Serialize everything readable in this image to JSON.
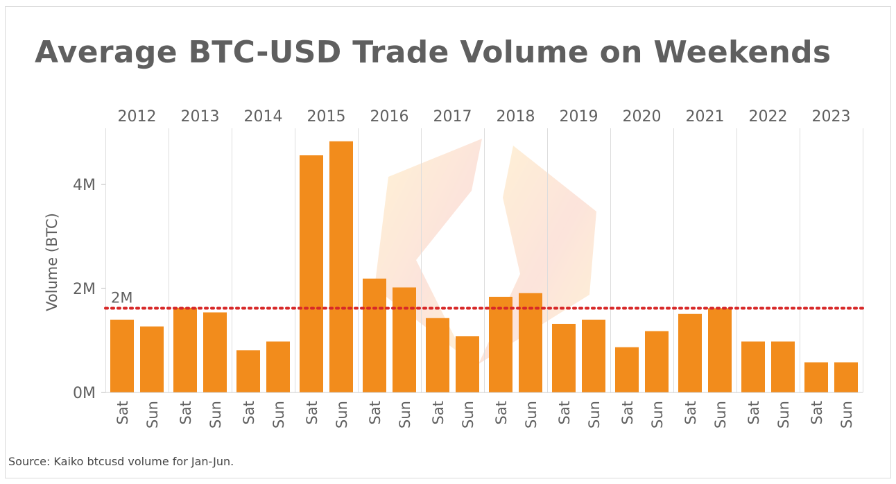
{
  "title": "Average BTC-USD Trade Volume on Weekends",
  "source": "Source: Kaiko btcusd volume for Jan-Jun.",
  "colors": {
    "bar": "#f28c1c",
    "reference_line": "#d72828",
    "grid": "#dddddd",
    "text": "#5f5f5f"
  },
  "chart_data": {
    "type": "bar",
    "title": "Average BTC-USD Trade Volume on Weekends",
    "ylabel": "Volume (BTC)",
    "xlabel": "",
    "ylim": [
      0,
      5000000
    ],
    "yticks": [
      {
        "value": 0,
        "label": "0M"
      },
      {
        "value": 2000000,
        "label": "2M"
      },
      {
        "value": 4000000,
        "label": "4M"
      }
    ],
    "groups": [
      "2012",
      "2013",
      "2014",
      "2015",
      "2016",
      "2017",
      "2018",
      "2019",
      "2020",
      "2021",
      "2022",
      "2023"
    ],
    "subcategories": [
      "Sat",
      "Sun"
    ],
    "values": [
      [
        1400000,
        1270000
      ],
      [
        1630000,
        1540000
      ],
      [
        810000,
        980000
      ],
      [
        4560000,
        4830000
      ],
      [
        2190000,
        2020000
      ],
      [
        1430000,
        1080000
      ],
      [
        1840000,
        1910000
      ],
      [
        1320000,
        1400000
      ],
      [
        870000,
        1180000
      ],
      [
        1510000,
        1620000
      ],
      [
        980000,
        980000
      ],
      [
        580000,
        580000
      ]
    ],
    "reference_line": {
      "value": 1620000,
      "label": "2M",
      "style": "dotted"
    },
    "grid": {
      "vertical_group_separators": true,
      "horizontal": false
    },
    "legend": "none"
  }
}
